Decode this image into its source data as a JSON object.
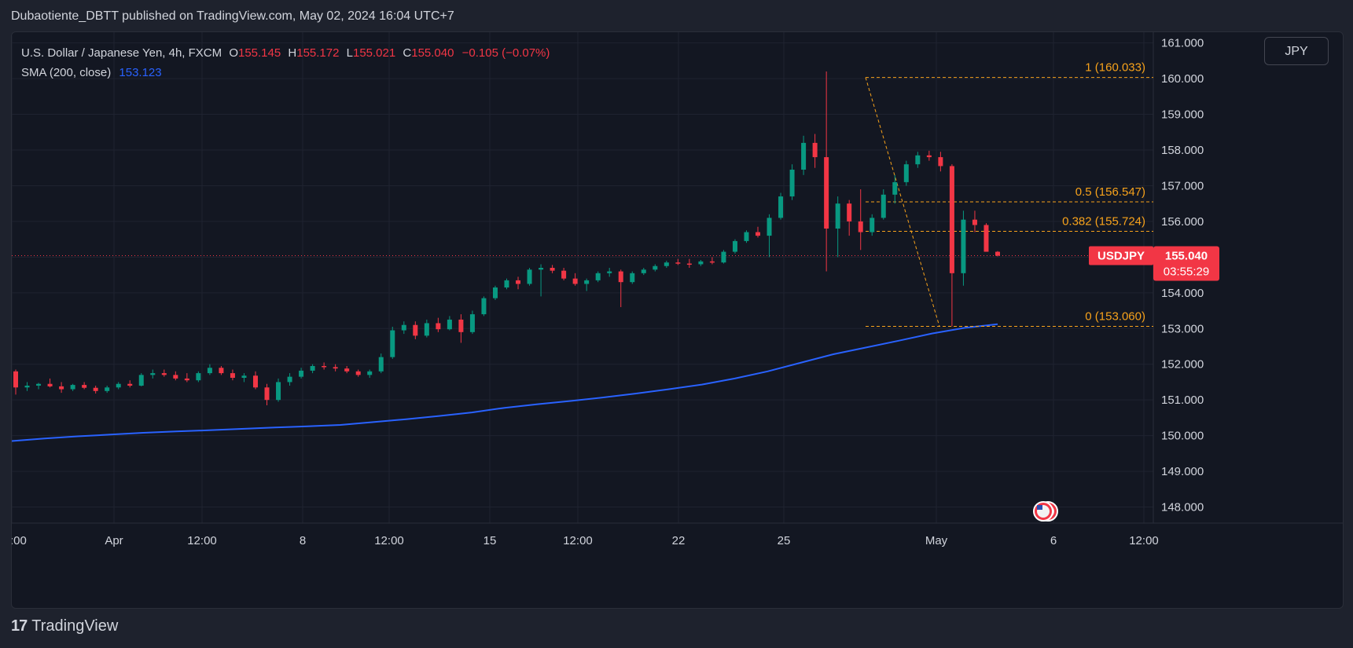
{
  "header": {
    "published_text": "Dubaotiente_DBTT published on TradingView.com, May 02, 2024 16:04 UTC+7"
  },
  "legend": {
    "symbol_title": "U.S. Dollar / Japanese Yen, 4h, FXCM",
    "open_label": "O",
    "open_value": "155.145",
    "high_label": "H",
    "high_value": "155.172",
    "low_label": "L",
    "low_value": "155.021",
    "close_label": "C",
    "close_value": "155.040",
    "change": "−0.105 (−0.07%)",
    "sma_label": "SMA (200, close)",
    "sma_value": "153.123"
  },
  "currency_button": "JPY",
  "footer": {
    "brand_mark": "17",
    "brand": "TradingView"
  },
  "colors": {
    "background": "#131722",
    "up": "#089981",
    "down": "#f23645",
    "sma": "#2962ff",
    "fib": "#f7a21b",
    "grid": "#1f2330",
    "text": "#d1d4dc"
  },
  "chart_data": {
    "type": "candlestick",
    "symbol": "USDJPY",
    "timeframe": "4h",
    "ylim": [
      147.55,
      161.3
    ],
    "y_ticks": [
      148,
      149,
      150,
      151,
      152,
      153,
      154,
      155,
      156,
      157,
      158,
      159,
      160,
      161
    ],
    "y_tick_labels": [
      "148.000",
      "149.000",
      "150.000",
      "151.000",
      "152.000",
      "153.000",
      "154.000",
      "155.000",
      "156.000",
      "157.000",
      "158.000",
      "159.000",
      "160.000",
      "161.000"
    ],
    "x_labels": [
      ":00",
      "Apr",
      "12:00",
      "8",
      "12:00",
      "15",
      "12:00",
      "22",
      "25",
      "May",
      "6",
      "12:00"
    ],
    "current_price": {
      "label": "USDJPY",
      "value": "155.040",
      "countdown": "03:55:29",
      "price": 155.04
    },
    "fibonacci": [
      {
        "label": "1 (160.033)",
        "value": 160.033
      },
      {
        "label": "0.5 (156.547)",
        "value": 156.547
      },
      {
        "label": "0.382 (155.724)",
        "value": 155.724
      },
      {
        "label": "0 (153.060)",
        "value": 153.06
      }
    ],
    "sma_200": [
      149.85,
      149.92,
      149.98,
      150.03,
      150.08,
      150.12,
      150.15,
      150.19,
      150.23,
      150.26,
      150.3,
      150.38,
      150.46,
      150.55,
      150.65,
      150.78,
      150.88,
      150.97,
      151.07,
      151.18,
      151.3,
      151.43,
      151.6,
      151.8,
      152.04,
      152.28,
      152.47,
      152.66,
      152.86,
      153.02,
      153.12
    ],
    "candles": [
      [
        151.8,
        151.85,
        151.15,
        151.35
      ],
      [
        151.35,
        151.5,
        151.25,
        151.4
      ],
      [
        151.4,
        151.48,
        151.3,
        151.45
      ],
      [
        151.45,
        151.6,
        151.35,
        151.38
      ],
      [
        151.38,
        151.5,
        151.2,
        151.3
      ],
      [
        151.3,
        151.45,
        151.25,
        151.42
      ],
      [
        151.42,
        151.5,
        151.3,
        151.34
      ],
      [
        151.34,
        151.4,
        151.18,
        151.25
      ],
      [
        151.25,
        151.4,
        151.2,
        151.35
      ],
      [
        151.35,
        151.5,
        151.3,
        151.45
      ],
      [
        151.45,
        151.55,
        151.35,
        151.4
      ],
      [
        151.4,
        151.75,
        151.38,
        151.7
      ],
      [
        151.7,
        151.85,
        151.6,
        151.75
      ],
      [
        151.75,
        151.85,
        151.65,
        151.7
      ],
      [
        151.7,
        151.8,
        151.55,
        151.6
      ],
      [
        151.6,
        151.75,
        151.5,
        151.55
      ],
      [
        151.55,
        151.8,
        151.5,
        151.75
      ],
      [
        151.75,
        152.0,
        151.7,
        151.9
      ],
      [
        151.9,
        151.95,
        151.7,
        151.75
      ],
      [
        151.75,
        151.85,
        151.55,
        151.62
      ],
      [
        151.62,
        151.75,
        151.5,
        151.68
      ],
      [
        151.68,
        151.8,
        151.3,
        151.35
      ],
      [
        151.35,
        151.45,
        150.85,
        151.0
      ],
      [
        151.0,
        151.6,
        150.95,
        151.5
      ],
      [
        151.5,
        151.75,
        151.4,
        151.65
      ],
      [
        151.65,
        151.9,
        151.6,
        151.82
      ],
      [
        151.82,
        152.0,
        151.75,
        151.95
      ],
      [
        151.95,
        152.05,
        151.85,
        151.92
      ],
      [
        151.92,
        152.0,
        151.8,
        151.88
      ],
      [
        151.88,
        151.95,
        151.75,
        151.8
      ],
      [
        151.8,
        151.85,
        151.65,
        151.7
      ],
      [
        151.7,
        151.85,
        151.62,
        151.8
      ],
      [
        151.8,
        152.3,
        151.75,
        152.2
      ],
      [
        152.2,
        153.05,
        152.15,
        152.95
      ],
      [
        152.95,
        153.2,
        152.85,
        153.1
      ],
      [
        153.1,
        153.2,
        152.7,
        152.8
      ],
      [
        152.8,
        153.25,
        152.75,
        153.15
      ],
      [
        153.15,
        153.3,
        152.9,
        152.98
      ],
      [
        152.98,
        153.35,
        152.95,
        153.25
      ],
      [
        153.25,
        153.4,
        152.6,
        152.9
      ],
      [
        152.9,
        153.5,
        152.85,
        153.4
      ],
      [
        153.4,
        153.9,
        153.35,
        153.85
      ],
      [
        153.85,
        154.2,
        153.8,
        154.15
      ],
      [
        154.15,
        154.4,
        154.1,
        154.35
      ],
      [
        154.35,
        154.45,
        154.1,
        154.25
      ],
      [
        154.25,
        154.7,
        154.2,
        154.65
      ],
      [
        154.65,
        154.8,
        153.9,
        154.7
      ],
      [
        154.7,
        154.78,
        154.55,
        154.62
      ],
      [
        154.62,
        154.7,
        154.35,
        154.4
      ],
      [
        154.4,
        154.55,
        154.2,
        154.25
      ],
      [
        154.25,
        154.4,
        154.05,
        154.35
      ],
      [
        154.35,
        154.6,
        154.3,
        154.55
      ],
      [
        154.55,
        154.7,
        154.45,
        154.6
      ],
      [
        154.6,
        154.65,
        153.6,
        154.3
      ],
      [
        154.3,
        154.6,
        154.25,
        154.55
      ],
      [
        154.55,
        154.7,
        154.5,
        154.65
      ],
      [
        154.65,
        154.8,
        154.6,
        154.75
      ],
      [
        154.75,
        154.9,
        154.7,
        154.85
      ],
      [
        154.85,
        154.95,
        154.78,
        154.82
      ],
      [
        154.82,
        154.95,
        154.7,
        154.8
      ],
      [
        154.8,
        154.92,
        154.75,
        154.88
      ],
      [
        154.88,
        155.0,
        154.8,
        154.85
      ],
      [
        154.85,
        155.2,
        154.82,
        155.15
      ],
      [
        155.15,
        155.5,
        155.1,
        155.45
      ],
      [
        155.45,
        155.75,
        155.4,
        155.7
      ],
      [
        155.7,
        155.85,
        155.55,
        155.6
      ],
      [
        155.6,
        156.2,
        155.0,
        156.1
      ],
      [
        156.1,
        156.8,
        156.05,
        156.7
      ],
      [
        156.7,
        157.6,
        156.6,
        157.45
      ],
      [
        157.45,
        158.4,
        157.3,
        158.2
      ],
      [
        158.2,
        158.45,
        157.5,
        157.8
      ],
      [
        157.8,
        160.2,
        154.6,
        155.8
      ],
      [
        155.8,
        156.7,
        155.0,
        156.5
      ],
      [
        156.5,
        156.6,
        155.6,
        156.0
      ],
      [
        156.0,
        156.9,
        155.2,
        155.7
      ],
      [
        155.7,
        156.2,
        155.6,
        156.1
      ],
      [
        156.1,
        156.9,
        156.05,
        156.75
      ],
      [
        156.75,
        157.3,
        156.5,
        157.1
      ],
      [
        157.1,
        157.7,
        157.0,
        157.6
      ],
      [
        157.6,
        157.95,
        157.5,
        157.85
      ],
      [
        157.85,
        157.98,
        157.7,
        157.8
      ],
      [
        157.8,
        157.95,
        157.4,
        157.55
      ],
      [
        157.55,
        157.6,
        153.06,
        154.55
      ],
      [
        154.55,
        156.3,
        154.2,
        156.05
      ],
      [
        156.05,
        156.3,
        155.7,
        155.9
      ],
      [
        155.9,
        155.95,
        155.2,
        155.15
      ],
      [
        155.15,
        155.17,
        155.02,
        155.04
      ]
    ]
  }
}
